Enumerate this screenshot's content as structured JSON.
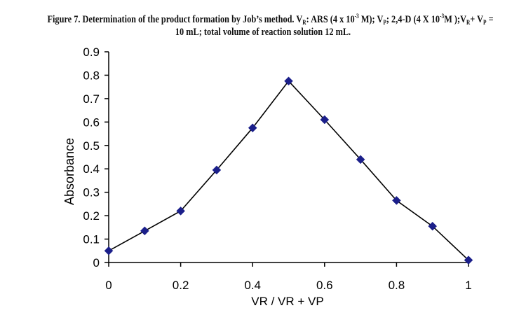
{
  "caption": {
    "line1_a": "Figure 7. Determination of the product formation by Job’s method. V",
    "line1_sub_r": "R",
    "line1_b": ": ARS    (4 x 10",
    "line1_sup_a": "-3",
    "line1_c": " M); V",
    "line1_sub_p": "P",
    "line1_d": "; 2,4-D (4 X 10",
    "line1_sup_b": "-3",
    "line1_e": "M );V",
    "line1_sub_r2": "R",
    "line1_f": "+ V",
    "line1_sub_p2": "P",
    "line1_g": " =",
    "line2": "10 mL; total volume of reaction solution 12 mL."
  },
  "chart_data": {
    "type": "line",
    "title": "",
    "xlabel": "VR / VR + VP",
    "ylabel": "Absorbance",
    "xlim": [
      0,
      1
    ],
    "ylim": [
      0,
      0.9
    ],
    "x_ticks": [
      "0",
      "0.2",
      "0.4",
      "0.6",
      "0.8",
      "1"
    ],
    "y_ticks": [
      "0",
      "0.1",
      "0.2",
      "0.3",
      "0.4",
      "0.5",
      "0.6",
      "0.7",
      "0.8",
      "0.9"
    ],
    "x": [
      0,
      0.1,
      0.2,
      0.3,
      0.4,
      0.5,
      0.6,
      0.7,
      0.8,
      0.9,
      1.0
    ],
    "series": [
      {
        "values": [
          0.05,
          0.135,
          0.22,
          0.395,
          0.575,
          0.775,
          0.61,
          0.44,
          0.265,
          0.155,
          0.01
        ],
        "marker": "diamond",
        "marker_color": "#1b1f8a",
        "line_color": "#000000"
      }
    ],
    "grid": false,
    "legend": "none"
  }
}
